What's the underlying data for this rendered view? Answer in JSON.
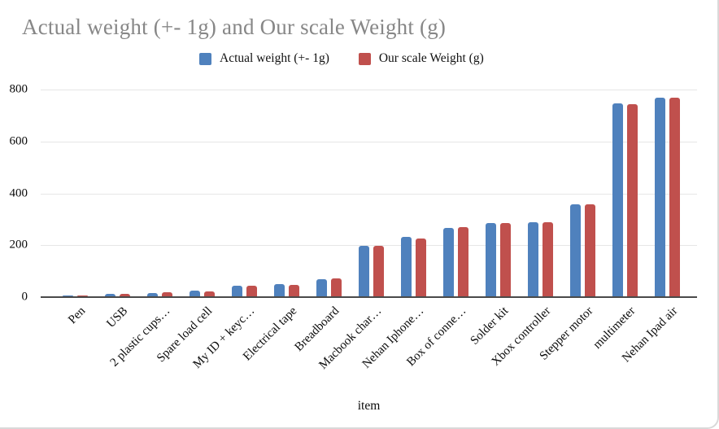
{
  "chart_data": {
    "type": "bar",
    "title": "Actual weight (+- 1g) and Our scale Weight (g)",
    "xlabel": "item",
    "ylabel": "",
    "ylim": [
      0,
      800
    ],
    "yticks": [
      0,
      200,
      400,
      600,
      800
    ],
    "grid": true,
    "legend_position": "top-center",
    "categories": [
      "Pen",
      "USB",
      "2 plastic cups…",
      "Spare load cell",
      "My ID + keyc…",
      "Electrical tape",
      "Breadboard",
      "Macbook char…",
      "Nehan Iphone…",
      "Box of conne…",
      "Solder kit",
      "Xbox controller",
      "Stepper motor",
      "multimeter",
      "Nehan Ipad air"
    ],
    "series": [
      {
        "name": "Actual weight (+- 1g)",
        "color": "#4F81BD",
        "values": [
          4,
          9,
          11,
          22,
          40,
          47,
          66,
          196,
          228,
          265,
          282,
          287,
          354,
          743,
          766
        ]
      },
      {
        "name": "Our scale Weight (g)",
        "color": "#C0504D",
        "values": [
          4,
          10,
          17,
          20,
          40,
          45,
          68,
          193,
          222,
          266,
          281,
          287,
          353,
          741,
          764
        ]
      }
    ]
  }
}
